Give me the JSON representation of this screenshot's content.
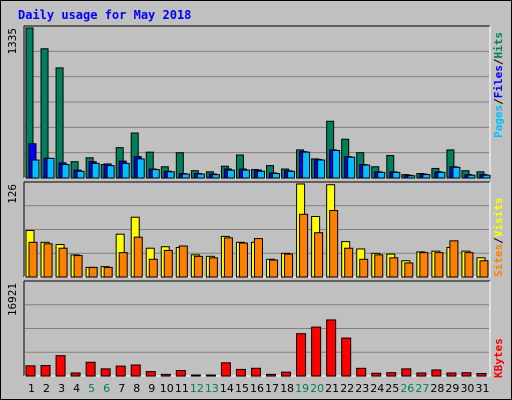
{
  "title": "Daily usage for May 2018",
  "colors": {
    "hits": "#00805c",
    "files": "#0000ff",
    "pages": "#00c0ff",
    "visits": "#ffff00",
    "sites": "#ff8000",
    "kbytes": "#ff0000",
    "weekend_label": "#00805c",
    "weekday_label": "#000000",
    "panel_bg": "#c0c0c0",
    "grid": "#808080"
  },
  "chart_data": [
    {
      "type": "bar",
      "panel": "hits",
      "ymax_label": "1335",
      "ylim": [
        0,
        1335
      ],
      "legend": [
        {
          "text": "Pages",
          "color": "#00c0ff"
        },
        {
          "text": "/",
          "color": "#000000"
        },
        {
          "text": "Files",
          "color": "#0000ff"
        },
        {
          "text": "/",
          "color": "#000000"
        },
        {
          "text": "Hits",
          "color": "#00805c"
        }
      ],
      "categories": [
        "1",
        "2",
        "3",
        "4",
        "5",
        "6",
        "7",
        "8",
        "9",
        "10",
        "11",
        "12",
        "13",
        "14",
        "15",
        "16",
        "17",
        "18",
        "19",
        "20",
        "21",
        "22",
        "23",
        "24",
        "25",
        "26",
        "27",
        "28",
        "29",
        "30",
        "31"
      ],
      "series": [
        {
          "name": "Hits",
          "values": [
            1335,
            1150,
            980,
            145,
            180,
            120,
            270,
            400,
            230,
            100,
            225,
            65,
            55,
            105,
            205,
            75,
            110,
            80,
            250,
            170,
            505,
            345,
            225,
            100,
            200,
            30,
            40,
            85,
            250,
            65,
            55
          ]
        },
        {
          "name": "Files",
          "values": [
            305,
            175,
            135,
            70,
            145,
            125,
            150,
            190,
            80,
            60,
            40,
            40,
            35,
            80,
            80,
            70,
            45,
            65,
            235,
            165,
            250,
            190,
            120,
            55,
            55,
            25,
            35,
            55,
            100,
            30,
            30
          ]
        },
        {
          "name": "Pages",
          "values": [
            160,
            175,
            120,
            60,
            130,
            110,
            130,
            170,
            75,
            55,
            35,
            35,
            30,
            70,
            70,
            60,
            40,
            60,
            230,
            160,
            245,
            185,
            115,
            50,
            50,
            20,
            30,
            50,
            95,
            25,
            25
          ]
        }
      ]
    },
    {
      "type": "bar",
      "panel": "visits",
      "ymax_label": "126",
      "ylim": [
        0,
        126
      ],
      "legend": [
        {
          "text": "Sites",
          "color": "#ff8000"
        },
        {
          "text": "/",
          "color": "#000000"
        },
        {
          "text": "Visits",
          "color": "#ffff00"
        }
      ],
      "categories": [
        "1",
        "2",
        "3",
        "4",
        "5",
        "6",
        "7",
        "8",
        "9",
        "10",
        "11",
        "12",
        "13",
        "14",
        "15",
        "16",
        "17",
        "18",
        "19",
        "20",
        "21",
        "22",
        "23",
        "24",
        "25",
        "26",
        "27",
        "28",
        "29",
        "30",
        "31"
      ],
      "series": [
        {
          "name": "Visits",
          "values": [
            63,
            47,
            44,
            30,
            13,
            14,
            58,
            81,
            39,
            41,
            40,
            30,
            28,
            55,
            47,
            47,
            24,
            32,
            126,
            82,
            125,
            48,
            38,
            32,
            31,
            22,
            34,
            35,
            40,
            35,
            26
          ]
        },
        {
          "name": "Sites",
          "values": [
            47,
            45,
            39,
            29,
            13,
            13,
            33,
            54,
            24,
            36,
            42,
            28,
            26,
            53,
            46,
            52,
            23,
            31,
            85,
            60,
            90,
            39,
            24,
            30,
            26,
            19,
            33,
            33,
            49,
            33,
            22
          ]
        }
      ]
    },
    {
      "type": "bar",
      "panel": "kbytes",
      "ymax_label": "16921",
      "ylim": [
        0,
        16921
      ],
      "legend": [
        {
          "text": "KBytes",
          "color": "#ff0000"
        }
      ],
      "categories": [
        "1",
        "2",
        "3",
        "4",
        "5",
        "6",
        "7",
        "8",
        "9",
        "10",
        "11",
        "12",
        "13",
        "14",
        "15",
        "16",
        "17",
        "18",
        "19",
        "20",
        "21",
        "22",
        "23",
        "24",
        "25",
        "26",
        "27",
        "28",
        "29",
        "30",
        "31"
      ],
      "series": [
        {
          "name": "KBytes",
          "values": [
            1850,
            1900,
            3700,
            550,
            2500,
            1300,
            1800,
            2000,
            800,
            300,
            1000,
            100,
            150,
            2400,
            1200,
            1400,
            300,
            700,
            7700,
            8900,
            10200,
            6900,
            1400,
            500,
            600,
            1300,
            550,
            1100,
            550,
            600,
            450
          ]
        }
      ]
    }
  ],
  "x_labels": [
    {
      "text": "1",
      "weekend": false
    },
    {
      "text": "2",
      "weekend": false
    },
    {
      "text": "3",
      "weekend": false
    },
    {
      "text": "4",
      "weekend": false
    },
    {
      "text": "5",
      "weekend": true
    },
    {
      "text": "6",
      "weekend": true
    },
    {
      "text": "7",
      "weekend": false
    },
    {
      "text": "8",
      "weekend": false
    },
    {
      "text": "9",
      "weekend": false
    },
    {
      "text": "10",
      "weekend": false
    },
    {
      "text": "11",
      "weekend": false
    },
    {
      "text": "12",
      "weekend": true
    },
    {
      "text": "13",
      "weekend": true
    },
    {
      "text": "14",
      "weekend": false
    },
    {
      "text": "15",
      "weekend": false
    },
    {
      "text": "16",
      "weekend": false
    },
    {
      "text": "17",
      "weekend": false
    },
    {
      "text": "18",
      "weekend": false
    },
    {
      "text": "19",
      "weekend": true
    },
    {
      "text": "20",
      "weekend": true
    },
    {
      "text": "21",
      "weekend": false
    },
    {
      "text": "22",
      "weekend": false
    },
    {
      "text": "23",
      "weekend": false
    },
    {
      "text": "24",
      "weekend": false
    },
    {
      "text": "25",
      "weekend": false
    },
    {
      "text": "26",
      "weekend": true
    },
    {
      "text": "27",
      "weekend": true
    },
    {
      "text": "28",
      "weekend": false
    },
    {
      "text": "29",
      "weekend": false
    },
    {
      "text": "30",
      "weekend": false
    },
    {
      "text": "31",
      "weekend": false
    }
  ]
}
